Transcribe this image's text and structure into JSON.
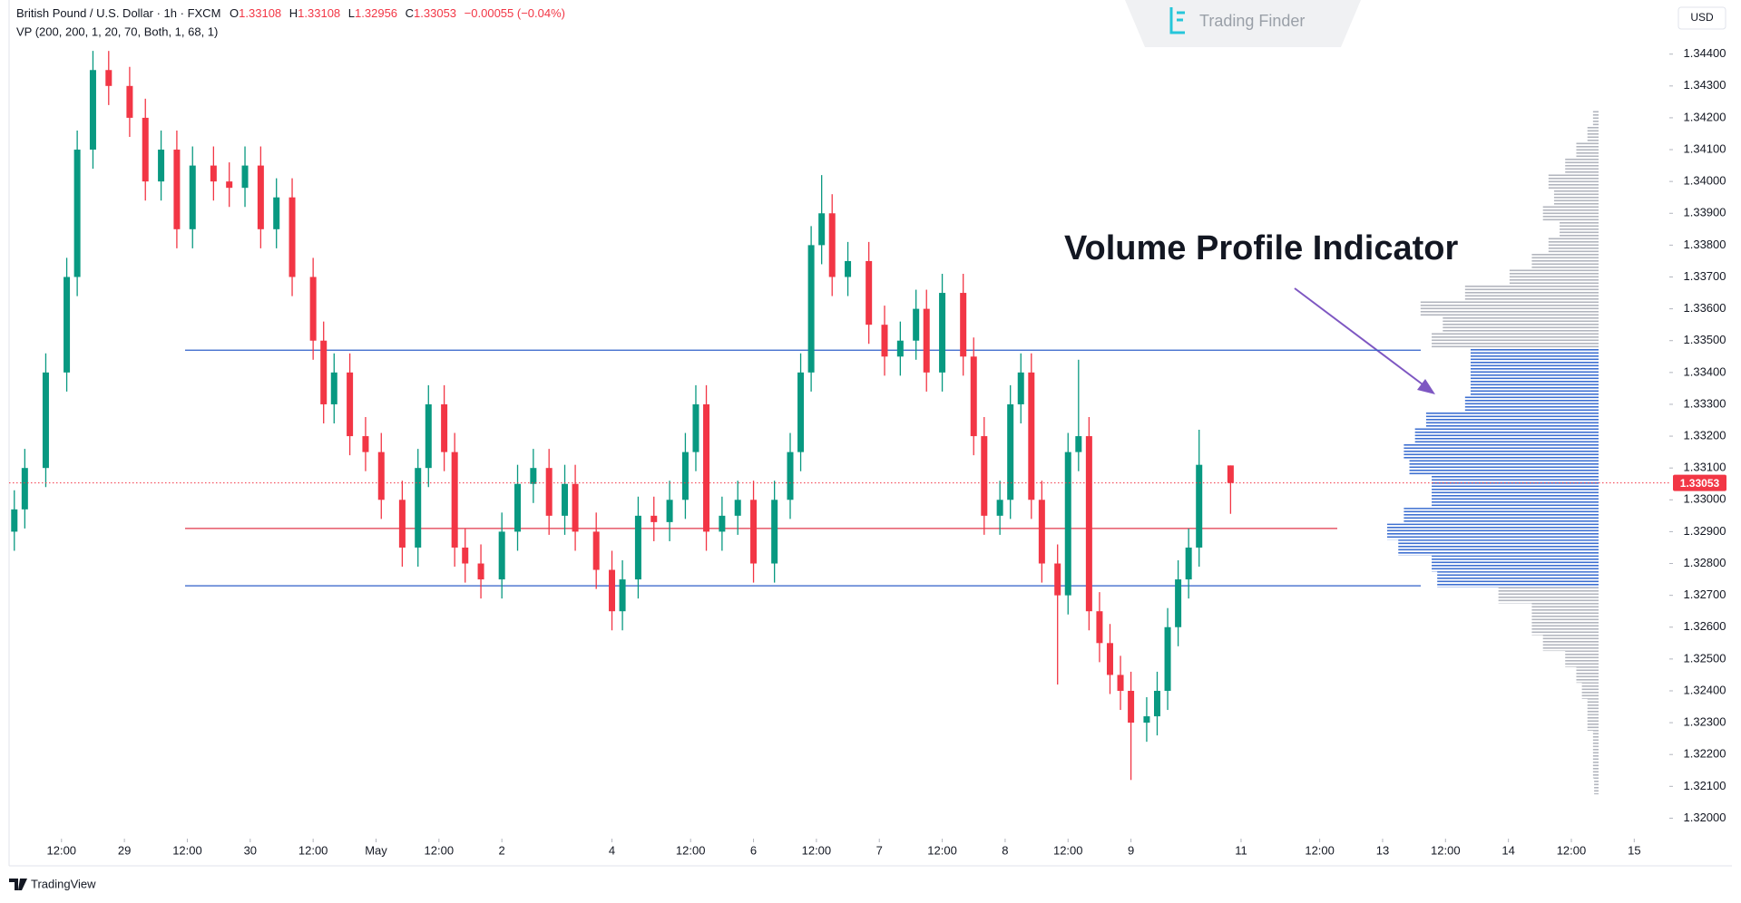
{
  "chart_data": {
    "type": "candlestick",
    "symbol": "British Pound / U.S. Dollar · 1h · FXCM",
    "ohlc_letters": [
      "O",
      "H",
      "L",
      "C"
    ],
    "change": "−0.00055 (−0.04%)",
    "indicator": "VP (200, 200, 1, 20, 70, Both, 1, 68, 1)",
    "currency": "USD",
    "annotation": "Volume Profile Indicator",
    "up_color": "#089981",
    "down_color": "#f23645",
    "x": [
      1,
      3,
      7,
      11,
      13,
      16,
      19,
      23,
      26,
      29,
      32,
      35,
      39,
      42,
      45,
      48,
      51,
      54,
      58,
      60,
      62,
      65,
      68,
      71,
      75,
      78,
      80,
      83,
      85,
      87,
      90,
      94,
      97,
      100,
      103,
      106,
      108,
      112,
      115,
      117,
      120,
      123,
      126,
      129,
      131,
      133,
      136,
      139,
      142,
      146,
      149,
      151,
      153,
      155,
      157,
      160,
      164,
      167,
      170,
      173,
      175,
      178,
      182,
      184,
      186,
      189,
      191,
      193,
      195,
      197,
      200,
      202,
      204,
      206,
      208,
      210,
      212,
      214,
      217,
      219,
      221,
      223,
      225,
      227,
      233
    ],
    "candles": [
      [
        1.329,
        1.3303,
        1.3284,
        1.3297
      ],
      [
        1.3297,
        1.3316,
        1.3291,
        1.331
      ],
      [
        1.331,
        1.3346,
        1.3304,
        1.334
      ],
      [
        1.334,
        1.3376,
        1.3334,
        1.337
      ],
      [
        1.337,
        1.3416,
        1.3364,
        1.341
      ],
      [
        1.341,
        1.3441,
        1.3404,
        1.3435
      ],
      [
        1.3435,
        1.3441,
        1.3424,
        1.343
      ],
      [
        1.343,
        1.3436,
        1.3414,
        1.342
      ],
      [
        1.342,
        1.3426,
        1.3394,
        1.34
      ],
      [
        1.34,
        1.3416,
        1.3394,
        1.341
      ],
      [
        1.341,
        1.3416,
        1.3379,
        1.3385
      ],
      [
        1.3385,
        1.3411,
        1.3379,
        1.3405
      ],
      [
        1.3405,
        1.3411,
        1.3394,
        1.34
      ],
      [
        1.34,
        1.3406,
        1.3392,
        1.3398
      ],
      [
        1.3398,
        1.3411,
        1.3392,
        1.3405
      ],
      [
        1.3405,
        1.3411,
        1.3379,
        1.3385
      ],
      [
        1.3385,
        1.3401,
        1.3379,
        1.3395
      ],
      [
        1.3395,
        1.3401,
        1.3364,
        1.337
      ],
      [
        1.337,
        1.3376,
        1.3344,
        1.335
      ],
      [
        1.335,
        1.3356,
        1.3324,
        1.333
      ],
      [
        1.333,
        1.3346,
        1.3324,
        1.334
      ],
      [
        1.334,
        1.3346,
        1.3314,
        1.332
      ],
      [
        1.332,
        1.3326,
        1.3309,
        1.3315
      ],
      [
        1.3315,
        1.3321,
        1.3294,
        1.33
      ],
      [
        1.33,
        1.3306,
        1.3279,
        1.3285
      ],
      [
        1.3285,
        1.3316,
        1.3279,
        1.331
      ],
      [
        1.331,
        1.3336,
        1.3304,
        1.333
      ],
      [
        1.333,
        1.3336,
        1.3309,
        1.3315
      ],
      [
        1.3315,
        1.3321,
        1.3279,
        1.3285
      ],
      [
        1.3285,
        1.3291,
        1.3274,
        1.328
      ],
      [
        1.328,
        1.3286,
        1.3269,
        1.3275
      ],
      [
        1.3275,
        1.3296,
        1.3269,
        1.329
      ],
      [
        1.329,
        1.3311,
        1.3284,
        1.3305
      ],
      [
        1.3305,
        1.3316,
        1.3299,
        1.331
      ],
      [
        1.331,
        1.3316,
        1.3289,
        1.3295
      ],
      [
        1.3295,
        1.3311,
        1.3289,
        1.3305
      ],
      [
        1.3305,
        1.3311,
        1.3284,
        1.329
      ],
      [
        1.329,
        1.3296,
        1.3272,
        1.3278
      ],
      [
        1.3278,
        1.3284,
        1.3259,
        1.3265
      ],
      [
        1.3265,
        1.3281,
        1.3259,
        1.3275
      ],
      [
        1.3275,
        1.3301,
        1.3269,
        1.3295
      ],
      [
        1.3295,
        1.3301,
        1.3287,
        1.3293
      ],
      [
        1.3293,
        1.3306,
        1.3287,
        1.33
      ],
      [
        1.33,
        1.3321,
        1.3294,
        1.3315
      ],
      [
        1.3315,
        1.3336,
        1.3309,
        1.333
      ],
      [
        1.333,
        1.3336,
        1.3284,
        1.329
      ],
      [
        1.329,
        1.3301,
        1.3284,
        1.3295
      ],
      [
        1.3295,
        1.3306,
        1.3289,
        1.33
      ],
      [
        1.33,
        1.3306,
        1.3274,
        1.328
      ],
      [
        1.328,
        1.3306,
        1.3274,
        1.33
      ],
      [
        1.33,
        1.3321,
        1.3294,
        1.3315
      ],
      [
        1.3315,
        1.3346,
        1.3309,
        1.334
      ],
      [
        1.334,
        1.3386,
        1.3334,
        1.338
      ],
      [
        1.338,
        1.3402,
        1.3374,
        1.339
      ],
      [
        1.339,
        1.3396,
        1.3364,
        1.337
      ],
      [
        1.337,
        1.3381,
        1.3364,
        1.3375
      ],
      [
        1.3375,
        1.3381,
        1.3349,
        1.3355
      ],
      [
        1.3355,
        1.3361,
        1.3339,
        1.3345
      ],
      [
        1.3345,
        1.3356,
        1.3339,
        1.335
      ],
      [
        1.335,
        1.3366,
        1.3344,
        1.336
      ],
      [
        1.336,
        1.3366,
        1.3334,
        1.334
      ],
      [
        1.334,
        1.3371,
        1.3334,
        1.3365
      ],
      [
        1.3365,
        1.3371,
        1.3339,
        1.3345
      ],
      [
        1.3345,
        1.3351,
        1.3314,
        1.332
      ],
      [
        1.332,
        1.3326,
        1.3289,
        1.3295
      ],
      [
        1.3295,
        1.3306,
        1.3289,
        1.33
      ],
      [
        1.33,
        1.3336,
        1.3294,
        1.333
      ],
      [
        1.333,
        1.3346,
        1.3324,
        1.334
      ],
      [
        1.334,
        1.3346,
        1.3294,
        1.33
      ],
      [
        1.33,
        1.3306,
        1.3274,
        1.328
      ],
      [
        1.328,
        1.3286,
        1.3242,
        1.327
      ],
      [
        1.327,
        1.3321,
        1.3264,
        1.3315
      ],
      [
        1.3315,
        1.3344,
        1.3309,
        1.332
      ],
      [
        1.332,
        1.3326,
        1.3259,
        1.3265
      ],
      [
        1.3265,
        1.3271,
        1.3249,
        1.3255
      ],
      [
        1.3255,
        1.3261,
        1.3239,
        1.3245
      ],
      [
        1.3245,
        1.3251,
        1.3234,
        1.324
      ],
      [
        1.324,
        1.3246,
        1.3212,
        1.323
      ],
      [
        1.323,
        1.3238,
        1.3224,
        1.3232
      ],
      [
        1.3232,
        1.3246,
        1.3226,
        1.324
      ],
      [
        1.324,
        1.3266,
        1.3234,
        1.326
      ],
      [
        1.326,
        1.3281,
        1.3254,
        1.3275
      ],
      [
        1.3275,
        1.3291,
        1.3269,
        1.3285
      ],
      [
        1.3285,
        1.3322,
        1.3279,
        1.3311
      ],
      [
        1.33108,
        1.33108,
        1.32956,
        1.33053
      ]
    ],
    "xlim": [
      0,
      316
    ],
    "xticks": [
      {
        "value": 10,
        "label": "12:00"
      },
      {
        "value": 22,
        "label": "29"
      },
      {
        "value": 34,
        "label": "12:00"
      },
      {
        "value": 46,
        "label": "30"
      },
      {
        "value": 58,
        "label": "12:00"
      },
      {
        "value": 70,
        "label": "May"
      },
      {
        "value": 82,
        "label": "12:00"
      },
      {
        "value": 94,
        "label": "2"
      },
      {
        "value": 115,
        "label": "4"
      },
      {
        "value": 130,
        "label": "12:00"
      },
      {
        "value": 142,
        "label": "6"
      },
      {
        "value": 154,
        "label": "12:00"
      },
      {
        "value": 166,
        "label": "7"
      },
      {
        "value": 178,
        "label": "12:00"
      },
      {
        "value": 190,
        "label": "8"
      },
      {
        "value": 202,
        "label": "12:00"
      },
      {
        "value": 214,
        "label": "9"
      },
      {
        "value": 235,
        "label": "11"
      },
      {
        "value": 250,
        "label": "12:00"
      },
      {
        "value": 262,
        "label": "13"
      },
      {
        "value": 274,
        "label": "12:00"
      },
      {
        "value": 286,
        "label": "14"
      },
      {
        "value": 298,
        "label": "12:00"
      },
      {
        "value": 310,
        "label": "15"
      }
    ],
    "ylim": [
      1.3195,
      1.3457
    ],
    "yticks": [
      {
        "value": 1.344,
        "label": "1.34400"
      },
      {
        "value": 1.343,
        "label": "1.34300"
      },
      {
        "value": 1.342,
        "label": "1.34200"
      },
      {
        "value": 1.341,
        "label": "1.34100"
      },
      {
        "value": 1.34,
        "label": "1.34000"
      },
      {
        "value": 1.339,
        "label": "1.33900"
      },
      {
        "value": 1.338,
        "label": "1.33800"
      },
      {
        "value": 1.337,
        "label": "1.33700"
      },
      {
        "value": 1.336,
        "label": "1.33600"
      },
      {
        "value": 1.335,
        "label": "1.33500"
      },
      {
        "value": 1.334,
        "label": "1.33400"
      },
      {
        "value": 1.333,
        "label": "1.33300"
      },
      {
        "value": 1.332,
        "label": "1.33200"
      },
      {
        "value": 1.331,
        "label": "1.33100"
      },
      {
        "value": 1.33,
        "label": "1.33000"
      },
      {
        "value": 1.329,
        "label": "1.32900"
      },
      {
        "value": 1.328,
        "label": "1.32800"
      },
      {
        "value": 1.327,
        "label": "1.32700"
      },
      {
        "value": 1.326,
        "label": "1.32600"
      },
      {
        "value": 1.325,
        "label": "1.32500"
      },
      {
        "value": 1.324,
        "label": "1.32400"
      },
      {
        "value": 1.323,
        "label": "1.32300"
      },
      {
        "value": 1.322,
        "label": "1.32200"
      },
      {
        "value": 1.321,
        "label": "1.32100"
      },
      {
        "value": 1.32,
        "label": "1.32000"
      }
    ],
    "profile": {
      "prices": [
        1.342,
        1.3415,
        1.341,
        1.3405,
        1.34,
        1.3395,
        1.339,
        1.3385,
        1.338,
        1.3375,
        1.337,
        1.3365,
        1.336,
        1.3355,
        1.335,
        1.3345,
        1.334,
        1.3335,
        1.333,
        1.3325,
        1.332,
        1.3315,
        1.331,
        1.3305,
        1.33,
        1.3295,
        1.329,
        1.3285,
        1.328,
        1.3275,
        1.327,
        1.3265,
        1.326,
        1.3255,
        1.325,
        1.3245,
        1.324,
        1.3235,
        1.323,
        1.3225,
        1.322,
        1.3215,
        1.321
      ],
      "volumes": [
        5,
        10,
        20,
        30,
        45,
        40,
        50,
        35,
        45,
        60,
        80,
        120,
        160,
        140,
        150,
        115,
        115,
        115,
        120,
        155,
        165,
        175,
        170,
        150,
        150,
        175,
        190,
        180,
        150,
        145,
        90,
        60,
        60,
        50,
        30,
        20,
        15,
        10,
        10,
        5,
        5,
        5,
        4
      ],
      "value_area_color": "#3d6fd1",
      "outside_color": "#b2b5be"
    },
    "levels": {
      "value_area_high": 1.3347,
      "point_of_control": 1.3291,
      "value_area_low": 1.3273,
      "value_area_line_color": "#2e5fc9",
      "poc_color": "#e0374a"
    }
  },
  "brand": "Trading Finder",
  "footer": "TradingView"
}
